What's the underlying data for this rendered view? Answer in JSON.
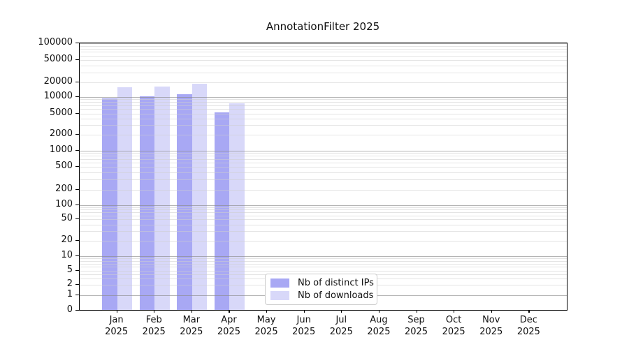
{
  "chart_data": {
    "type": "bar",
    "title": "AnnotationFilter 2025",
    "categories": [
      "Jan",
      "Feb",
      "Mar",
      "Apr",
      "May",
      "Jun",
      "Jul",
      "Aug",
      "Sep",
      "Oct",
      "Nov",
      "Dec"
    ],
    "year_label": "2025",
    "series": [
      {
        "name": "Nb of distinct IPs",
        "color": "#a8a8f4",
        "values": [
          9300,
          10000,
          11200,
          5250,
          null,
          null,
          null,
          null,
          null,
          null,
          null,
          null
        ]
      },
      {
        "name": "Nb of downloads",
        "color": "#d8d8f9",
        "values": [
          15500,
          16000,
          18400,
          7500,
          null,
          null,
          null,
          null,
          null,
          null,
          null,
          null
        ]
      }
    ],
    "y_axis": {
      "scale": "symlog",
      "range": [
        0,
        100000
      ],
      "ticks": [
        {
          "value": 100000,
          "label": "100000",
          "t": 0.0
        },
        {
          "value": 50000,
          "label": "50000",
          "t": 0.0627
        },
        {
          "value": 20000,
          "label": "20000",
          "t": 0.1451
        },
        {
          "value": 10000,
          "label": "10000",
          "t": 0.2005
        },
        {
          "value": 5000,
          "label": "5000",
          "t": 0.2633
        },
        {
          "value": 2000,
          "label": "2000",
          "t": 0.3417
        },
        {
          "value": 1000,
          "label": "1000",
          "t": 0.4026
        },
        {
          "value": 500,
          "label": "500",
          "t": 0.462
        },
        {
          "value": 200,
          "label": "200",
          "t": 0.5482
        },
        {
          "value": 100,
          "label": "100",
          "t": 0.6057
        },
        {
          "value": 50,
          "label": "50",
          "t": 0.6596
        },
        {
          "value": 20,
          "label": "20",
          "t": 0.7399
        },
        {
          "value": 10,
          "label": "10",
          "t": 0.7974
        },
        {
          "value": 5,
          "label": "5",
          "t": 0.8515
        },
        {
          "value": 2,
          "label": "2",
          "t": 0.9038
        },
        {
          "value": 1,
          "label": "1",
          "t": 0.943
        },
        {
          "value": 0,
          "label": "0",
          "t": 1.0
        }
      ]
    },
    "grid": {
      "shown": true,
      "major_color": "#b0b0b0",
      "minor_color": "#e5e5e5",
      "drawn_over_bars": true
    },
    "legend": {
      "position": "lower center-left",
      "entries": [
        "Nb of distinct IPs",
        "Nb of downloads"
      ]
    }
  }
}
